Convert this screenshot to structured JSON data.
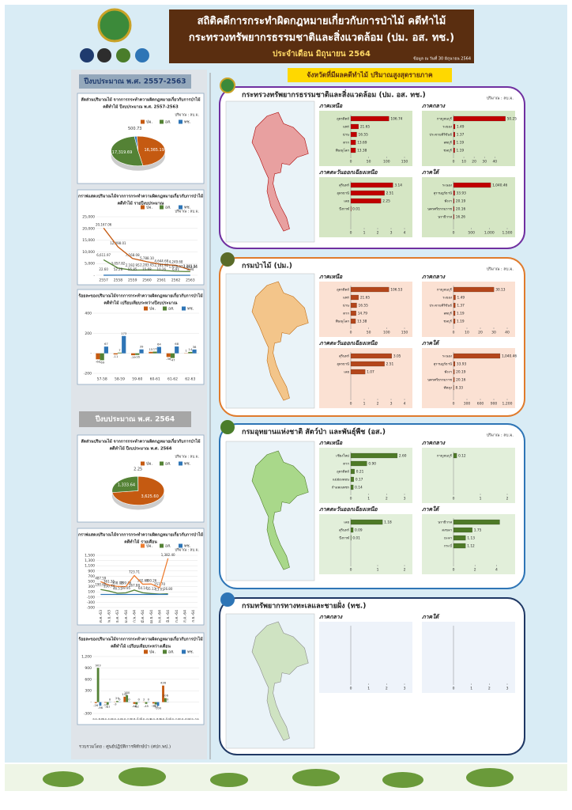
{
  "header": {
    "title": "สถิติคดีการกระทำผิดกฎหมายเกี่ยวกับการป่าไม้ คดีทำไม้",
    "subtitle": "กระทรวงทรัพยากรธรรมชาติและสิ่งแวดล้อม (ปม. อส. ทช.)",
    "period": "ประจำเดือน มิถุนายน 2564",
    "as_of": "ข้อมูล ณ วันที่ 30 มิถุนายน 2564"
  },
  "left": {
    "section1": "ปีงบประมาณ พ.ศ. 2557-2563",
    "section2": "ปีงบประมาณ พ.ศ. 2564"
  },
  "right": {
    "heading": "จังหวัดที่มีผลคดีทำไม้ ปริมาณสูงสุดรายภาค"
  },
  "panels": [
    {
      "title": "กระทรวงทรัพยากรธรรมชาติและสิ่งแวดล้อม (ปม. อส. ทช.)",
      "unit": "ปริมาณ : ลบ.ม."
    },
    {
      "title": "กรมป่าไม้ (ปม.)",
      "unit": "ปริมาณ : ลบ.ม."
    },
    {
      "title": "กรมอุทยานแห่งชาติ สัตว์ป่า และพันธุ์พืช (อส.)",
      "unit": "ปริมาณ : ลบ.ม."
    },
    {
      "title": "กรมทรัพยากรทางทะเลและชายฝั่ง (ทช.)"
    }
  ],
  "footer": "รวบรวมโดย : ศูนย์ปฏิบัติการพิทักษ์ป่า (ศปก.พป.)",
  "chart_data": [
    {
      "type": "pie",
      "title": [
        "สัดส่วนปริมาณไม้ จากการกระทำความผิดกฎหมายเกี่ยวกับการป่าไม้",
        "คดีทำไม้ ปีงบประมาณ พ.ศ. 2557-2563"
      ],
      "unit": "ปริมาณ : ลบ.ม.",
      "categories": [
        "ปม.",
        "อส.",
        "ทช."
      ],
      "values": [
        16365.19,
        17319.69,
        500.73
      ],
      "value_labels": [
        "16,365.19",
        "17,319.69",
        "500.73"
      ],
      "colors": [
        "#c55a11",
        "#548235",
        "#2e75b6"
      ]
    },
    {
      "type": "line",
      "title": [
        "กราฟแสดงปริมาณไม้จากการกระทำความผิดกฎหมายเกี่ยวกับการป่าไม้",
        "คดีทำไม้ รายปีงบประมาณ"
      ],
      "unit": "ปริมาณ : ลบ.ม.",
      "categories": [
        "2557",
        "2558",
        "2559",
        "2560",
        "2561",
        "2562",
        "2563"
      ],
      "series": [
        {
          "name": "ปม.",
          "color": "#c55a11",
          "values": [
            20167.06,
            12098.01,
            7168.08,
            5788.1,
            4644.68,
            4249.68,
            2283.04
          ],
          "value_labels": [
            "20,167.06",
            "12,098.01",
            "7,168.08",
            "5,788.10",
            "4,644.68",
            "4,249.68",
            "2,283.04"
          ]
        },
        {
          "name": "อส.",
          "color": "#548235",
          "values": [
            6611.97,
            3057.82,
            2192.95,
            2283.05,
            2161.92,
            1676.97,
            1563.36
          ],
          "value_labels": [
            "6,611.97",
            "3,057.82",
            "2,192.95",
            "2,283.05",
            "2,161.92",
            "1,676.97",
            "1,563.36"
          ]
        },
        {
          "name": "ทช.",
          "color": "#2e75b6",
          "values": [
            22.6,
            52.28,
            55.85,
            15.68,
            10.26,
            6.81,
            3.94
          ],
          "value_labels": [
            "22.60",
            "52.28",
            "55.85",
            "15.68",
            "10.26",
            "6.81",
            "3.94"
          ]
        }
      ],
      "ylim": [
        0,
        25000
      ],
      "yticks": [
        {
          "value": 0,
          "label": "-"
        },
        {
          "value": 5000,
          "label": "5,000"
        },
        {
          "value": 10000,
          "label": "10,000"
        },
        {
          "value": 15000,
          "label": "15,000"
        },
        {
          "value": 20000,
          "label": "20,000"
        },
        {
          "value": 25000,
          "label": "25,000"
        }
      ]
    },
    {
      "type": "bar",
      "title": [
        "ร้อยละของปริมาณไม้จากการกระทำความผิดกฎหมายเกี่ยวกับการป่าไม้",
        "คดีทำไม้ เปรียบเทียบระหว่างปีงบประมาณ"
      ],
      "categories": [
        "57-58",
        "58-59",
        "59-60",
        "60-61",
        "61-62",
        "62-63"
      ],
      "series": [
        {
          "name": "ปม.",
          "color": "#c55a11",
          "values": [
            -60,
            -11,
            -19,
            15,
            -36,
            1
          ]
        },
        {
          "name": "อส.",
          "color": "#548235",
          "values": [
            -69,
            7,
            -16,
            17,
            -47,
            14
          ]
        },
        {
          "name": "ทช.",
          "color": "#2e75b6",
          "values": [
            67,
            173,
            39,
            64,
            68,
            38
          ]
        }
      ],
      "ylim": [
        -200,
        400
      ],
      "yticks": [
        -200,
        {
          "value": 0,
          "label": "-"
        },
        200,
        400
      ]
    },
    {
      "type": "pie",
      "title": [
        "สัดส่วนปริมาณไม้ จากการกระทำความผิดกฎหมายเกี่ยวกับการป่าไม้",
        "คดีทำไม้ ปีงบประมาณ พ.ศ. 2564"
      ],
      "unit": "ปริมาณ : ลบ.ม.",
      "categories": [
        "ปม.",
        "อส.",
        "ทช."
      ],
      "values": [
        3625.6,
        1333.64,
        2.25
      ],
      "value_labels": [
        "3,625.60",
        "1,333.64",
        "2.25"
      ],
      "colors": [
        "#c55a11",
        "#548235",
        "#2e75b6"
      ]
    },
    {
      "type": "line",
      "title": [
        "กราฟแสดงปริมาณไม้จากการกระทำความผิดกฎหมายเกี่ยวกับการป่าไม้",
        "คดีทำไม้ รายเดือน"
      ],
      "unit": "ปริมาณ : ลบ.ม.",
      "categories": [
        "ต.ค.-63",
        "พ.ย.-63",
        "ธ.ค.-63",
        "ม.ค.-64",
        "ก.พ.-64",
        "มี.ค.-64",
        "เม.ย.-64",
        "พ.ค.-64",
        "มิ.ย.-64",
        "ก.ค.-64",
        "ส.ค.-64",
        "ก.ย.-64"
      ],
      "series": [
        {
          "name": "ปม.",
          "color": "#ed7d31",
          "values": [
            487.59,
            361.35,
            308.08,
            299.46,
            723.71,
            392.63,
            400.26,
            257.7,
            1382.4,
            null,
            null,
            null
          ],
          "value_labels": [
            "487.59",
            "361.35",
            "308.08",
            "299.46",
            "723.71",
            "392.63",
            "400.26",
            "257.70",
            "1,382.40",
            null,
            null,
            null
          ]
        },
        {
          "name": "อส.",
          "color": "#548235",
          "values": [
            190.65,
            130.74,
            46.51,
            59.95,
            167.88,
            64.14,
            35.13,
            13.01,
            26.8,
            null,
            null,
            null
          ],
          "value_labels": [
            "190.65",
            "130.74",
            "46.51",
            "59.95",
            "167.88",
            "64.14",
            "35.13",
            "13.01",
            "26.80",
            null,
            null,
            null
          ]
        },
        {
          "name": "ทช.",
          "color": "#2e75b6",
          "values": [
            0.04,
            0,
            0,
            0,
            0,
            0,
            2.21,
            0,
            0,
            null,
            null,
            null
          ]
        }
      ],
      "ylim": [
        -500,
        1500
      ],
      "yticks": [
        -500,
        -300,
        -100,
        100,
        300,
        500,
        700,
        900,
        {
          "value": 1100,
          "label": "1,100"
        },
        {
          "value": 1300,
          "label": "1,300"
        },
        {
          "value": 1500,
          "label": "1,500"
        }
      ]
    },
    {
      "type": "bar",
      "title": [
        "ร้อยละของปริมาณไม้จากการกระทำความผิดกฎหมายเกี่ยวกับการป่าไม้",
        "คดีทำไม้ เปรียบเทียบระหว่างเดือน"
      ],
      "categories": [
        "ต.ค.-พ.ย.",
        "พ.ย.-ธ.ค.",
        "ธ.ค.-ม.ค.",
        "ม.ค.-ก.พ.",
        "ก.พ.-มี.ค.",
        "มี.ค.-เม.ย.",
        "เม.ย.-พ.ค.",
        "พ.ค.-มิ.ย.",
        "มิ.ย.-ก.ค.",
        "ก.ค.-ส.ค.",
        "ส.ค.-ก.ย."
      ],
      "series": [
        {
          "name": "ปม.",
          "color": "#c55a11",
          "values": [
            -26,
            -15,
            -3,
            142,
            -46,
            2,
            -36,
            436,
            null,
            null,
            null
          ]
        },
        {
          "name": "อส.",
          "color": "#548235",
          "values": [
            903,
            -67,
            29,
            180,
            -62,
            -45,
            -63,
            106,
            null,
            null,
            null
          ]
        },
        {
          "name": "ทช.",
          "color": "#2e75b6",
          "values": [
            -96,
            0,
            0,
            0,
            0,
            0,
            -100,
            0,
            null,
            null,
            null
          ]
        }
      ],
      "ylim": [
        -300,
        1200
      ],
      "yticks": [
        -300,
        {
          "value": 0,
          "label": "-"
        },
        300,
        600,
        900,
        {
          "value": 1200,
          "label": "1,200"
        }
      ]
    },
    {
      "type": "barh",
      "title": "ภาคเหนือ",
      "color": "#c00000",
      "bg": "#d5e6c4",
      "categories": [
        "อุตรดิตถ์",
        "แพร่",
        "น่าน",
        "ตาก",
        "พิษณุโลก"
      ],
      "values": [
        106.74,
        21.65,
        16.55,
        13.69,
        13.38
      ],
      "value_labels": [
        "106.74",
        "21.65",
        "16.55",
        "13.69",
        "13.38"
      ],
      "xlim": [
        0,
        150
      ],
      "xticks": [
        0,
        50,
        100,
        150
      ]
    },
    {
      "type": "barh",
      "title": "ภาคกลาง",
      "color": "#c00000",
      "bg": "#d5e6c4",
      "categories": [
        "กาญจนบุรี",
        "ระยอง",
        "ประจวบคีรีขันธ์",
        "ลพบุรี",
        "ชลบุรี"
      ],
      "values": [
        50.25,
        1.49,
        1.37,
        1.19,
        1.19
      ],
      "value_labels": [
        "50.25",
        "1.49",
        "1.37",
        "1.19",
        "1.19"
      ],
      "xlim": [
        0,
        52
      ],
      "xticks": [
        0,
        10,
        20,
        30,
        40
      ]
    },
    {
      "type": "barh",
      "title": "ภาคตะวันออกเฉียงเหนือ",
      "color": "#c00000",
      "bg": "#d5e6c4",
      "categories": [
        "สุรินทร์",
        "อุดรธานี",
        "เลย",
        "บึงกาฬ"
      ],
      "values": [
        3.14,
        2.51,
        2.25,
        0.01
      ],
      "value_labels": [
        "3.14",
        "2.51",
        "2.25",
        "0.01"
      ],
      "xlim": [
        0,
        4
      ],
      "xticks": [
        0,
        1,
        2,
        3,
        4
      ]
    },
    {
      "type": "barh",
      "title": "ภาคใต้",
      "color": "#c00000",
      "bg": "#d5e6c4",
      "categories": [
        "ระนอง",
        "สุราษฎร์ธานี",
        "พังงา",
        "นครศรีธรรมราช",
        "นราธิวาส"
      ],
      "values": [
        1040.46,
        33.93,
        20.19,
        20.16,
        16.26
      ],
      "value_labels": [
        "1,040.46",
        "33.93",
        "20.19",
        "20.16",
        "16.26"
      ],
      "xlim": [
        0,
        1500
      ],
      "xticks": [
        0,
        500,
        {
          "value": 1000,
          "label": "1,000"
        },
        {
          "value": 1500,
          "label": "1,500"
        }
      ]
    },
    {
      "type": "barh",
      "title": "ภาคเหนือ",
      "color": "#b4461b",
      "bg": "#fbe1d3",
      "categories": [
        "อุตรดิตถ์",
        "แพร่",
        "น่าน",
        "ตาก",
        "พิษณุโลก"
      ],
      "values": [
        106.53,
        21.65,
        16.55,
        14.79,
        13.38
      ],
      "value_labels": [
        "106.53",
        "21.65",
        "16.55",
        "14.79",
        "13.38"
      ],
      "xlim": [
        0,
        150
      ],
      "xticks": [
        0,
        50,
        100,
        150
      ]
    },
    {
      "type": "barh",
      "title": "ภาคกลาง",
      "color": "#b4461b",
      "bg": "#fbe1d3",
      "categories": [
        "กาญจนบุรี",
        "ระยอง",
        "ประจวบคีรีขันธ์",
        "ลพบุรี",
        "ชลบุรี"
      ],
      "values": [
        30.13,
        1.49,
        1.37,
        1.19,
        1.19
      ],
      "value_labels": [
        "30.13",
        "1.49",
        "1.37",
        "1.19",
        "1.19"
      ],
      "xlim": [
        0,
        40
      ],
      "xticks": [
        0,
        10,
        20,
        30,
        40
      ]
    },
    {
      "type": "barh",
      "title": "ภาคตะวันออกเฉียงเหนือ",
      "color": "#b4461b",
      "bg": "#fbe1d3",
      "categories": [
        "สุรินทร์",
        "อุดรธานี",
        "เลย"
      ],
      "values": [
        3.05,
        2.51,
        1.07
      ],
      "value_labels": [
        "3.05",
        "2.51",
        "1.07"
      ],
      "xlim": [
        0,
        4
      ],
      "xticks": [
        0,
        1,
        2,
        3,
        4
      ]
    },
    {
      "type": "barh",
      "title": "ภาคใต้",
      "color": "#b4461b",
      "bg": "#fbe1d3",
      "categories": [
        "ระนอง",
        "สุราษฎร์ธานี",
        "พังงา",
        "นครศรีธรรมราช",
        "พัทลุง"
      ],
      "values": [
        1040.46,
        33.93,
        20.19,
        20.16,
        8.33
      ],
      "value_labels": [
        "1,040.46",
        "33.93",
        "20.19",
        "20.16",
        "8.33"
      ],
      "xlim": [
        0,
        1200
      ],
      "xticks": [
        0,
        300,
        600,
        900,
        {
          "value": 1200,
          "label": "1,200"
        }
      ]
    },
    {
      "type": "barh",
      "title": "ภาคเหนือ",
      "color": "#4e7a27",
      "bg": "#e2efda",
      "categories": [
        "เชียงใหม่",
        "ตาก",
        "อุตรดิตถ์",
        "แม่ฮ่องสอน",
        "กำแพงเพชร"
      ],
      "values": [
        2.6,
        0.9,
        0.21,
        0.17,
        0.14
      ],
      "value_labels": [
        "2.60",
        "0.90",
        "0.21",
        "0.17",
        "0.14"
      ],
      "xlim": [
        0,
        3
      ],
      "xticks": [
        0,
        1,
        2,
        3
      ]
    },
    {
      "type": "barh",
      "title": "ภาคกลาง",
      "color": "#4e7a27",
      "bg": "#e2efda",
      "categories": [
        "กาญจนบุรี"
      ],
      "values": [
        0.12
      ],
      "value_labels": [
        "0.12"
      ],
      "xlim": [
        0,
        2
      ],
      "xticks": [
        0,
        1,
        2
      ]
    },
    {
      "type": "barh",
      "title": "ภาคตะวันออกเฉียงเหนือ",
      "color": "#4e7a27",
      "bg": "#e2efda",
      "categories": [
        "เลย",
        "สุรินทร์",
        "บึงกาฬ"
      ],
      "values": [
        1.18,
        0.09,
        0.01
      ],
      "value_labels": [
        "1.18",
        "0.09",
        "0.01"
      ],
      "xlim": [
        0,
        2
      ],
      "xticks": [
        0,
        1,
        2
      ]
    },
    {
      "type": "barh",
      "title": "ภาคใต้",
      "color": "#4e7a27",
      "bg": "#e2efda",
      "categories": [
        "นราธิวาส",
        "สงขลา",
        "ยะลา",
        "กระบี่"
      ],
      "values": [
        4.3,
        1.75,
        1.13,
        1.12
      ],
      "value_labels": [
        null,
        "1.75",
        "1.13",
        "1.12"
      ],
      "xlim": [
        0,
        5
      ],
      "xticks": [
        0,
        2,
        4
      ]
    },
    {
      "type": "barh",
      "title": "ภาคกลาง",
      "color": "#2e75b6",
      "bg": "#eef3fa",
      "categories": [],
      "values": [],
      "xlim": [
        0,
        3
      ],
      "xticks": [
        0,
        1,
        2,
        3
      ]
    },
    {
      "type": "barh",
      "title": "ภาคใต้",
      "color": "#2e75b6",
      "bg": "#eef3fa",
      "categories": [],
      "values": [],
      "xlim": [
        0,
        3
      ],
      "xticks": [
        0,
        1,
        2,
        3
      ]
    }
  ]
}
